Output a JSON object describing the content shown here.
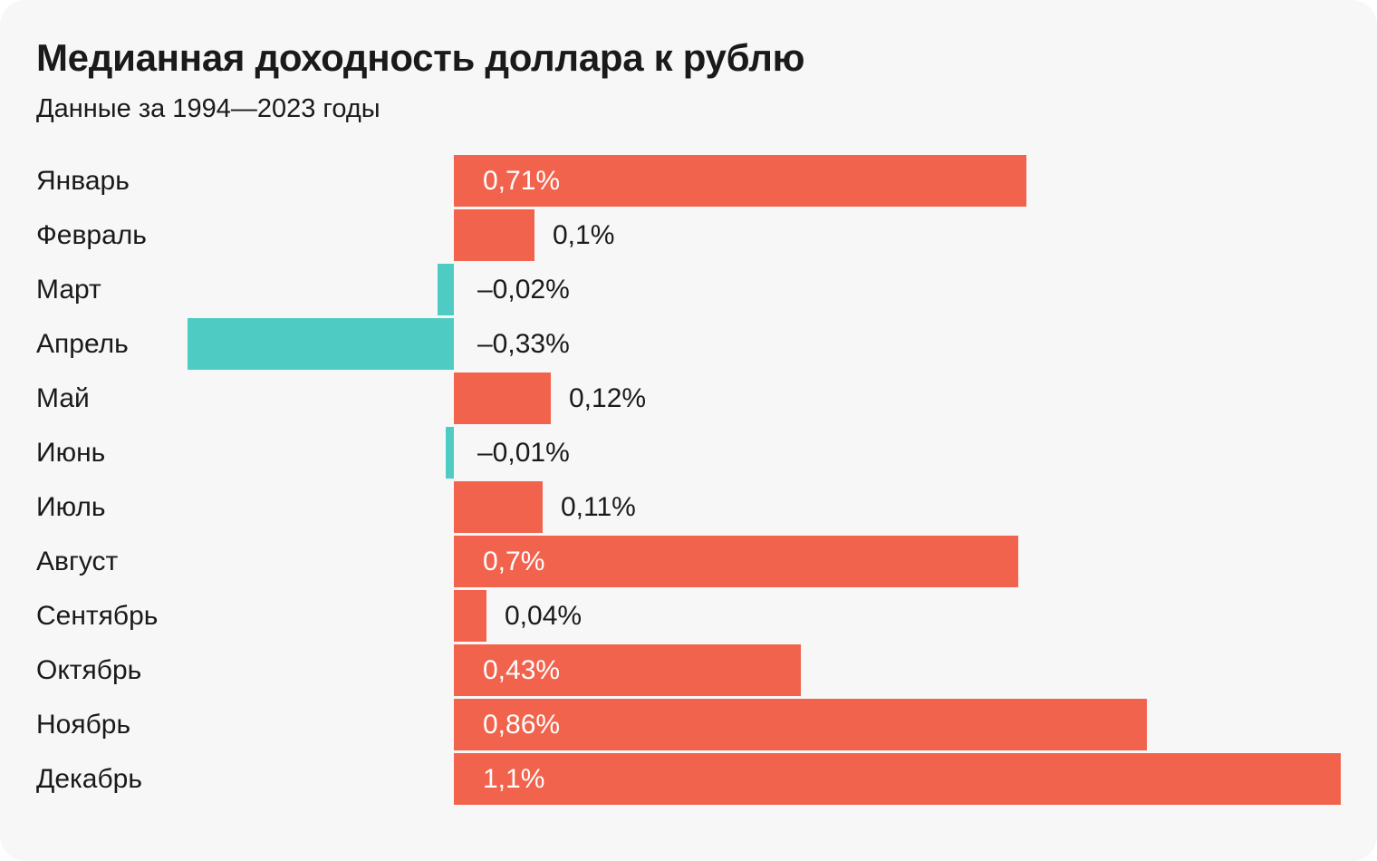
{
  "page": {
    "background": "#ffffff",
    "card_background": "#F8F7F7"
  },
  "header": {
    "title": "Медианная доходность доллара к рублю",
    "subtitle": "Данные за 1994—2023 годы"
  },
  "chart_data": {
    "type": "bar",
    "orientation": "horizontal",
    "title": "Медианная доходность доллара к рублю",
    "subtitle": "Данные за 1994—2023 годы",
    "unit": "%",
    "baseline": 0,
    "xlim": [
      -0.52,
      1.15
    ],
    "grid": false,
    "legend": false,
    "positive_color": "#F2634E",
    "negative_color": "#4ECCC4",
    "inside_label_color": "#ffffff",
    "outside_label_color": "#1a1a1a",
    "categories": [
      "Январь",
      "Февраль",
      "Март",
      "Апрель",
      "Май",
      "Июнь",
      "Июль",
      "Август",
      "Сентябрь",
      "Октябрь",
      "Ноябрь",
      "Декабрь"
    ],
    "values": [
      0.71,
      0.1,
      -0.02,
      -0.33,
      0.12,
      -0.01,
      0.11,
      0.7,
      0.04,
      0.43,
      0.86,
      1.1
    ],
    "value_labels": [
      "0,71%",
      "0,1%",
      "–0,02%",
      "–0,33%",
      "0,12%",
      "–0,01%",
      "0,11%",
      "0,7%",
      "0,04%",
      "0,43%",
      "0,86%",
      "1,1%"
    ],
    "label_placement": [
      "inside",
      "outside",
      "outside",
      "outside",
      "outside",
      "outside",
      "outside",
      "inside",
      "outside",
      "inside",
      "inside",
      "inside"
    ]
  }
}
